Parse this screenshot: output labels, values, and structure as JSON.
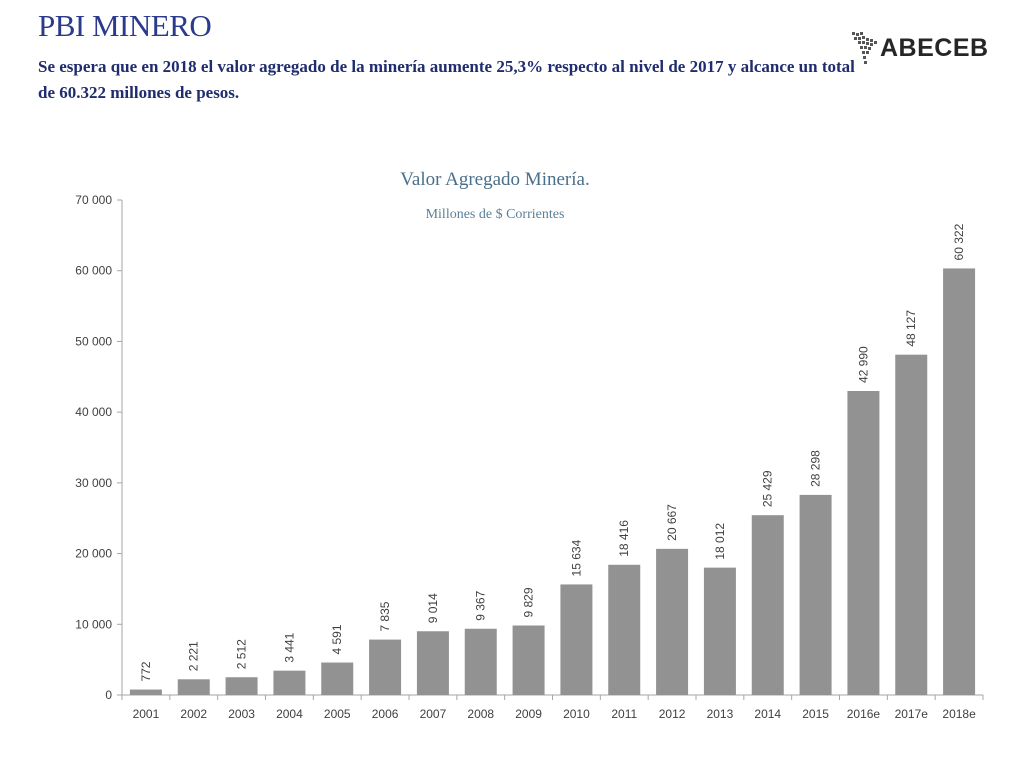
{
  "header": {
    "title": "PBI MINERO",
    "subtitle": "Se espera que en 2018 el valor agregado de la minería aumente 25,3% respecto al nivel de 2017 y alcance  un total de 60.322 millones de pesos."
  },
  "logo": {
    "text": "ABECEB",
    "icon": "south-america-map-icon"
  },
  "colors": {
    "title": "#2b3a8c",
    "subtitle": "#1f2c6e",
    "chart_title": "#4a6f8a",
    "bar": "#929292",
    "axis": "#a6a6a6"
  },
  "chart_data": {
    "type": "bar",
    "title": "Valor Agregado Minería.",
    "subtitle": "Millones de $ Corrientes",
    "categories": [
      "2001",
      "2002",
      "2003",
      "2004",
      "2005",
      "2006",
      "2007",
      "2008",
      "2009",
      "2010",
      "2011",
      "2012",
      "2013",
      "2014",
      "2015",
      "2016e",
      "2017e",
      "2018e"
    ],
    "values": [
      772,
      2221,
      2512,
      3441,
      4591,
      7835,
      9014,
      9367,
      9829,
      15634,
      18416,
      20667,
      18012,
      25429,
      28298,
      42990,
      48127,
      60322
    ],
    "value_labels": [
      "772",
      "2 221",
      "2 512",
      "3 441",
      "4 591",
      "7 835",
      "9 014",
      "9 367",
      "9 829",
      "15 634",
      "18 416",
      "20 667",
      "18 012",
      "25 429",
      "28 298",
      "42 990",
      "48 127",
      "60 322"
    ],
    "ylim": [
      0,
      70000
    ],
    "yticks": [
      0,
      10000,
      20000,
      30000,
      40000,
      50000,
      60000,
      70000
    ],
    "ytick_labels": [
      "0",
      "10 000",
      "20 000",
      "30 000",
      "40 000",
      "50 000",
      "60 000",
      "70 000"
    ],
    "grid": false,
    "legend": "none"
  }
}
